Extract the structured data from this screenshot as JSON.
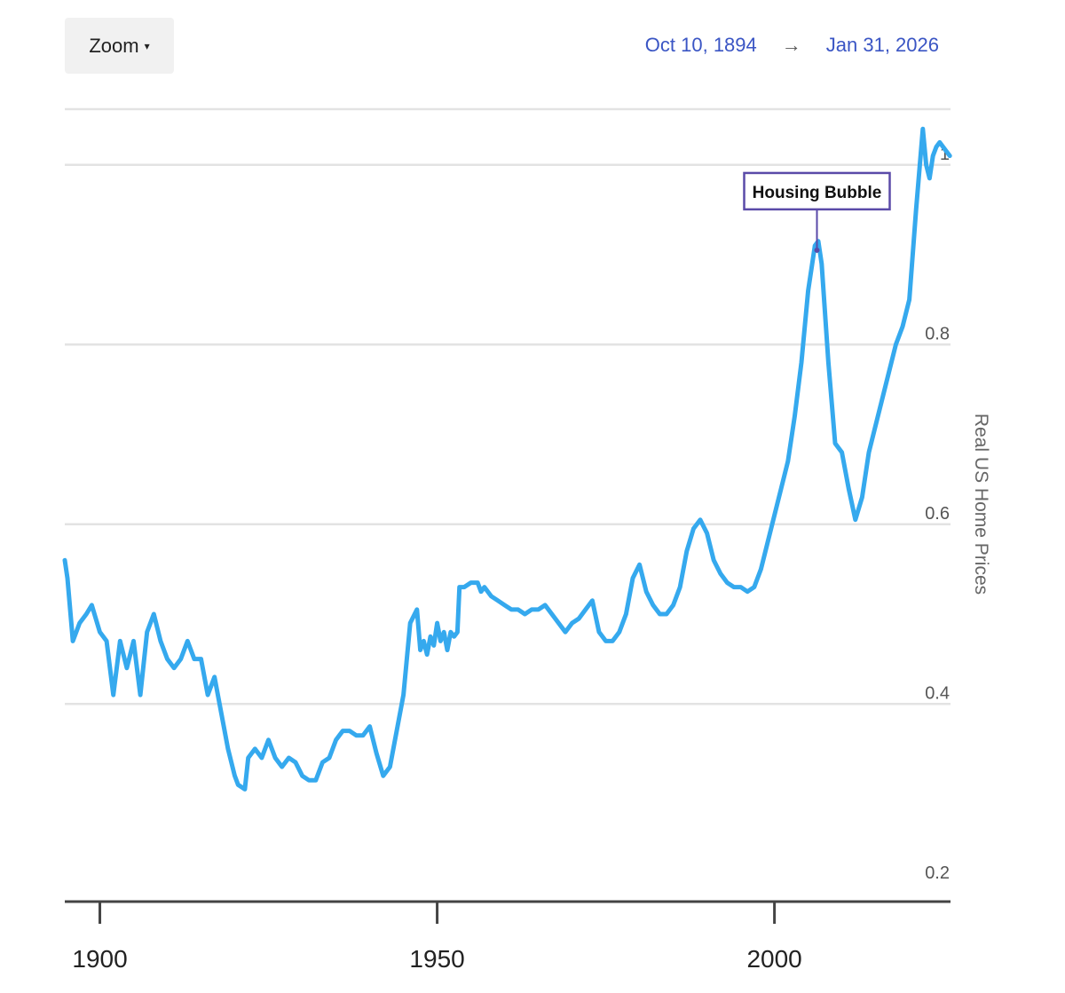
{
  "toolbar": {
    "zoom_label": "Zoom",
    "zoom_caret": "▾",
    "date_from": "Oct 10, 1894",
    "date_arrow": "→",
    "date_to": "Jan 31, 2026"
  },
  "colors": {
    "line": "#35a9ee",
    "grid": "#e3e3e3",
    "axis": "#444444",
    "accent": "#3a55c4",
    "annotation_border": "#5a4aa8"
  },
  "chart_data": {
    "type": "line",
    "title": "",
    "xlabel": "",
    "ylabel": "Real US Home Prices",
    "xlim": [
      1894.8,
      2026.1
    ],
    "ylim": [
      0.18,
      1.06
    ],
    "y_ticks": [
      {
        "value": 0.2,
        "label": "0.2"
      },
      {
        "value": 0.4,
        "label": "0.4"
      },
      {
        "value": 0.6,
        "label": "0.6"
      },
      {
        "value": 0.8,
        "label": "0.8"
      },
      {
        "value": 1.0,
        "label": "1"
      }
    ],
    "x_ticks": [
      {
        "value": 1900,
        "label": "1900"
      },
      {
        "value": 1950,
        "label": "1950"
      },
      {
        "value": 2000,
        "label": "2000"
      }
    ],
    "gridlines": [
      0.4,
      0.6,
      0.8,
      1.0,
      1.2
    ],
    "grid": true,
    "legend": "none",
    "series": [
      {
        "values": [
          [
            1894.8,
            0.56
          ],
          [
            1895.2,
            0.54
          ],
          [
            1896,
            0.47
          ],
          [
            1897,
            0.49
          ],
          [
            1898,
            0.5
          ],
          [
            1898.8,
            0.51
          ],
          [
            1900,
            0.48
          ],
          [
            1901,
            0.47
          ],
          [
            1902,
            0.41
          ],
          [
            1903,
            0.47
          ],
          [
            1904,
            0.44
          ],
          [
            1905,
            0.47
          ],
          [
            1906,
            0.41
          ],
          [
            1907,
            0.48
          ],
          [
            1908,
            0.5
          ],
          [
            1909,
            0.47
          ],
          [
            1910,
            0.45
          ],
          [
            1911,
            0.44
          ],
          [
            1912,
            0.45
          ],
          [
            1913,
            0.47
          ],
          [
            1914,
            0.45
          ],
          [
            1915,
            0.45
          ],
          [
            1916,
            0.41
          ],
          [
            1917,
            0.43
          ],
          [
            1918,
            0.39
          ],
          [
            1919,
            0.35
          ],
          [
            1920,
            0.32
          ],
          [
            1920.5,
            0.31
          ],
          [
            1921.5,
            0.305
          ],
          [
            1922,
            0.34
          ],
          [
            1923,
            0.35
          ],
          [
            1924,
            0.34
          ],
          [
            1925,
            0.36
          ],
          [
            1926,
            0.34
          ],
          [
            1927,
            0.33
          ],
          [
            1928,
            0.34
          ],
          [
            1929,
            0.335
          ],
          [
            1930,
            0.32
          ],
          [
            1931,
            0.315
          ],
          [
            1932,
            0.315
          ],
          [
            1933,
            0.335
          ],
          [
            1934,
            0.34
          ],
          [
            1935,
            0.36
          ],
          [
            1936,
            0.37
          ],
          [
            1937,
            0.37
          ],
          [
            1938,
            0.365
          ],
          [
            1939,
            0.365
          ],
          [
            1940,
            0.375
          ],
          [
            1941,
            0.345
          ],
          [
            1942,
            0.32
          ],
          [
            1943,
            0.33
          ],
          [
            1944,
            0.37
          ],
          [
            1945,
            0.41
          ],
          [
            1946,
            0.49
          ],
          [
            1947,
            0.505
          ],
          [
            1947.5,
            0.46
          ],
          [
            1948,
            0.47
          ],
          [
            1948.5,
            0.455
          ],
          [
            1949,
            0.475
          ],
          [
            1949.5,
            0.465
          ],
          [
            1950,
            0.49
          ],
          [
            1950.5,
            0.47
          ],
          [
            1951,
            0.48
          ],
          [
            1951.5,
            0.46
          ],
          [
            1952,
            0.48
          ],
          [
            1952.5,
            0.475
          ],
          [
            1953,
            0.48
          ],
          [
            1953.3,
            0.53
          ],
          [
            1954,
            0.53
          ],
          [
            1955,
            0.535
          ],
          [
            1956,
            0.535
          ],
          [
            1956.5,
            0.525
          ],
          [
            1957,
            0.53
          ],
          [
            1958,
            0.52
          ],
          [
            1959,
            0.515
          ],
          [
            1960,
            0.51
          ],
          [
            1961,
            0.505
          ],
          [
            1962,
            0.505
          ],
          [
            1963,
            0.5
          ],
          [
            1964,
            0.505
          ],
          [
            1965,
            0.505
          ],
          [
            1966,
            0.51
          ],
          [
            1967,
            0.5
          ],
          [
            1968,
            0.49
          ],
          [
            1969,
            0.48
          ],
          [
            1970,
            0.49
          ],
          [
            1971,
            0.495
          ],
          [
            1972,
            0.505
          ],
          [
            1973,
            0.515
          ],
          [
            1974,
            0.48
          ],
          [
            1975,
            0.47
          ],
          [
            1976,
            0.47
          ],
          [
            1977,
            0.48
          ],
          [
            1978,
            0.5
          ],
          [
            1979,
            0.54
          ],
          [
            1980,
            0.555
          ],
          [
            1981,
            0.525
          ],
          [
            1982,
            0.51
          ],
          [
            1983,
            0.5
          ],
          [
            1984,
            0.5
          ],
          [
            1985,
            0.51
          ],
          [
            1986,
            0.53
          ],
          [
            1987,
            0.57
          ],
          [
            1988,
            0.595
          ],
          [
            1989,
            0.605
          ],
          [
            1990,
            0.59
          ],
          [
            1991,
            0.56
          ],
          [
            1992,
            0.545
          ],
          [
            1993,
            0.535
          ],
          [
            1994,
            0.53
          ],
          [
            1995,
            0.53
          ],
          [
            1996,
            0.525
          ],
          [
            1997,
            0.53
          ],
          [
            1998,
            0.55
          ],
          [
            1999,
            0.58
          ],
          [
            2000,
            0.61
          ],
          [
            2001,
            0.64
          ],
          [
            2002,
            0.67
          ],
          [
            2003,
            0.72
          ],
          [
            2004,
            0.78
          ],
          [
            2005,
            0.86
          ],
          [
            2006,
            0.91
          ],
          [
            2006.5,
            0.915
          ],
          [
            2007,
            0.89
          ],
          [
            2008,
            0.78
          ],
          [
            2009,
            0.69
          ],
          [
            2010,
            0.68
          ],
          [
            2011,
            0.64
          ],
          [
            2012,
            0.605
          ],
          [
            2013,
            0.63
          ],
          [
            2014,
            0.68
          ],
          [
            2015,
            0.71
          ],
          [
            2016,
            0.74
          ],
          [
            2017,
            0.77
          ],
          [
            2018,
            0.8
          ],
          [
            2019,
            0.82
          ],
          [
            2020,
            0.85
          ],
          [
            2021,
            0.95
          ],
          [
            2022,
            1.04
          ],
          [
            2022.5,
            1.0
          ],
          [
            2023,
            0.985
          ],
          [
            2023.5,
            1.01
          ],
          [
            2024,
            1.02
          ],
          [
            2024.5,
            1.025
          ],
          [
            2025,
            1.02
          ],
          [
            2026,
            1.01
          ]
        ]
      }
    ],
    "annotations": [
      {
        "label": "Housing Bubble",
        "x": 2006.3,
        "y": 0.905
      }
    ]
  }
}
